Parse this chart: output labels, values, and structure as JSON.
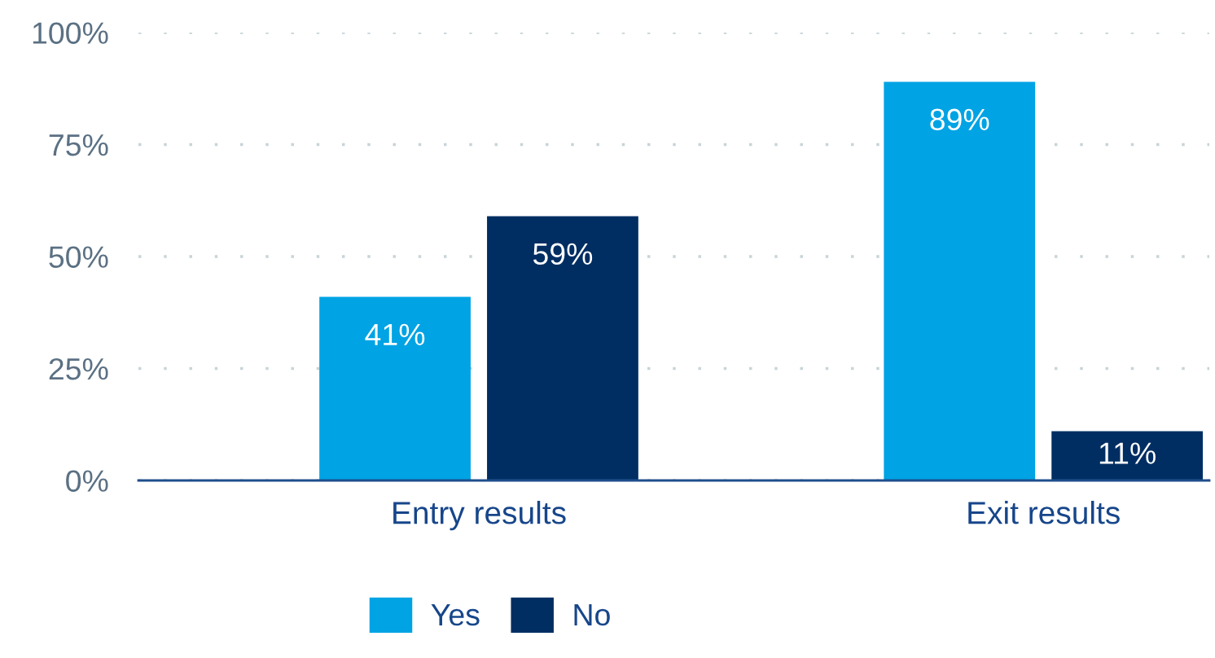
{
  "chart_data": {
    "type": "bar",
    "categories": [
      "Entry results",
      "Exit results"
    ],
    "series": [
      {
        "name": "Yes",
        "color": "#00a3e4",
        "values": [
          41,
          89
        ]
      },
      {
        "name": "No",
        "color": "#002e62",
        "values": [
          59,
          11
        ]
      }
    ],
    "ylim": [
      0,
      100
    ],
    "yticks": [
      {
        "value": 0,
        "label": "0%"
      },
      {
        "value": 25,
        "label": "25%"
      },
      {
        "value": 50,
        "label": "50%"
      },
      {
        "value": 75,
        "label": "75%"
      },
      {
        "value": 100,
        "label": "100%"
      }
    ],
    "value_labels": [
      [
        "41%",
        "89%"
      ],
      [
        "59%",
        "11%"
      ]
    ],
    "grid": "y",
    "legend": "bottom"
  }
}
